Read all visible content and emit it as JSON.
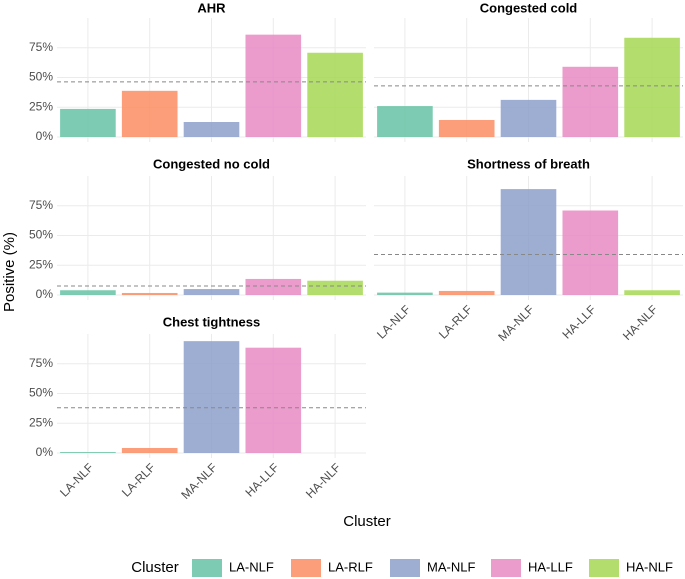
{
  "y_label": "Positive (%)",
  "x_label": "Cluster",
  "legend_title": "Cluster",
  "chart_data": [
    {
      "type": "bar",
      "title": "AHR",
      "categories": [
        "LA-NLF",
        "LA-RLF",
        "MA-NLF",
        "HA-LLF",
        "HA-NLF"
      ],
      "values": [
        23.6,
        38.8,
        12.6,
        86,
        70.8
      ],
      "colors": [
        "#66c2a5",
        "#fc8d62",
        "#8da0cb",
        "#e78ac3",
        "#a6d854"
      ],
      "reference_line": 46.3,
      "ylim": [
        -4.2,
        100
      ],
      "yticks": [
        {
          "value": 0,
          "label": "0%"
        },
        {
          "value": 25,
          "label": "25%"
        },
        {
          "value": 50,
          "label": "50%"
        },
        {
          "value": 75,
          "label": "75%"
        }
      ],
      "grid": true
    },
    {
      "type": "bar",
      "title": "Congested cold",
      "categories": [
        "LA-NLF",
        "LA-RLF",
        "MA-NLF",
        "HA-LLF",
        "HA-NLF"
      ],
      "values": [
        26,
        14.3,
        31.2,
        59,
        83.4
      ],
      "colors": [
        "#66c2a5",
        "#fc8d62",
        "#8da0cb",
        "#e78ac3",
        "#a6d854"
      ],
      "reference_line": 43,
      "ylim": [
        -4.2,
        100
      ],
      "yticks": [
        {
          "value": 0,
          "label": "0%"
        },
        {
          "value": 25,
          "label": "25%"
        },
        {
          "value": 50,
          "label": "50%"
        },
        {
          "value": 75,
          "label": "75%"
        }
      ],
      "grid": true
    },
    {
      "type": "bar",
      "title": "Congested no cold",
      "categories": [
        "LA-NLF",
        "LA-RLF",
        "MA-NLF",
        "HA-LLF",
        "HA-NLF"
      ],
      "values": [
        4,
        1.7,
        5,
        13.5,
        12
      ],
      "colors": [
        "#66c2a5",
        "#fc8d62",
        "#8da0cb",
        "#e78ac3",
        "#a6d854"
      ],
      "reference_line": 7.6,
      "ylim": [
        -4.2,
        100
      ],
      "yticks": [
        {
          "value": 0,
          "label": "0%"
        },
        {
          "value": 25,
          "label": "25%"
        },
        {
          "value": 50,
          "label": "50%"
        },
        {
          "value": 75,
          "label": "75%"
        }
      ],
      "grid": true
    },
    {
      "type": "bar",
      "title": "Shortness of breath",
      "categories": [
        "LA-NLF",
        "LA-RLF",
        "MA-NLF",
        "HA-LLF",
        "HA-NLF"
      ],
      "values": [
        2,
        3.4,
        89,
        71,
        4
      ],
      "colors": [
        "#66c2a5",
        "#fc8d62",
        "#8da0cb",
        "#e78ac3",
        "#a6d854"
      ],
      "reference_line": 34,
      "ylim": [
        -4.2,
        100
      ],
      "yticks": [
        {
          "value": 0,
          "label": "0%"
        },
        {
          "value": 25,
          "label": "25%"
        },
        {
          "value": 50,
          "label": "50%"
        },
        {
          "value": 75,
          "label": "75%"
        }
      ],
      "grid": true
    },
    {
      "type": "bar",
      "title": "Chest tightness",
      "categories": [
        "LA-NLF",
        "LA-RLF",
        "MA-NLF",
        "HA-LLF",
        "HA-NLF"
      ],
      "values": [
        0.8,
        4.2,
        94,
        88.5,
        0
      ],
      "colors": [
        "#66c2a5",
        "#fc8d62",
        "#8da0cb",
        "#e78ac3",
        "#a6d854"
      ],
      "reference_line": 38,
      "ylim": [
        -4.2,
        100
      ],
      "yticks": [
        {
          "value": 0,
          "label": "0%"
        },
        {
          "value": 25,
          "label": "25%"
        },
        {
          "value": 50,
          "label": "50%"
        },
        {
          "value": 75,
          "label": "75%"
        }
      ],
      "grid": true
    }
  ]
}
